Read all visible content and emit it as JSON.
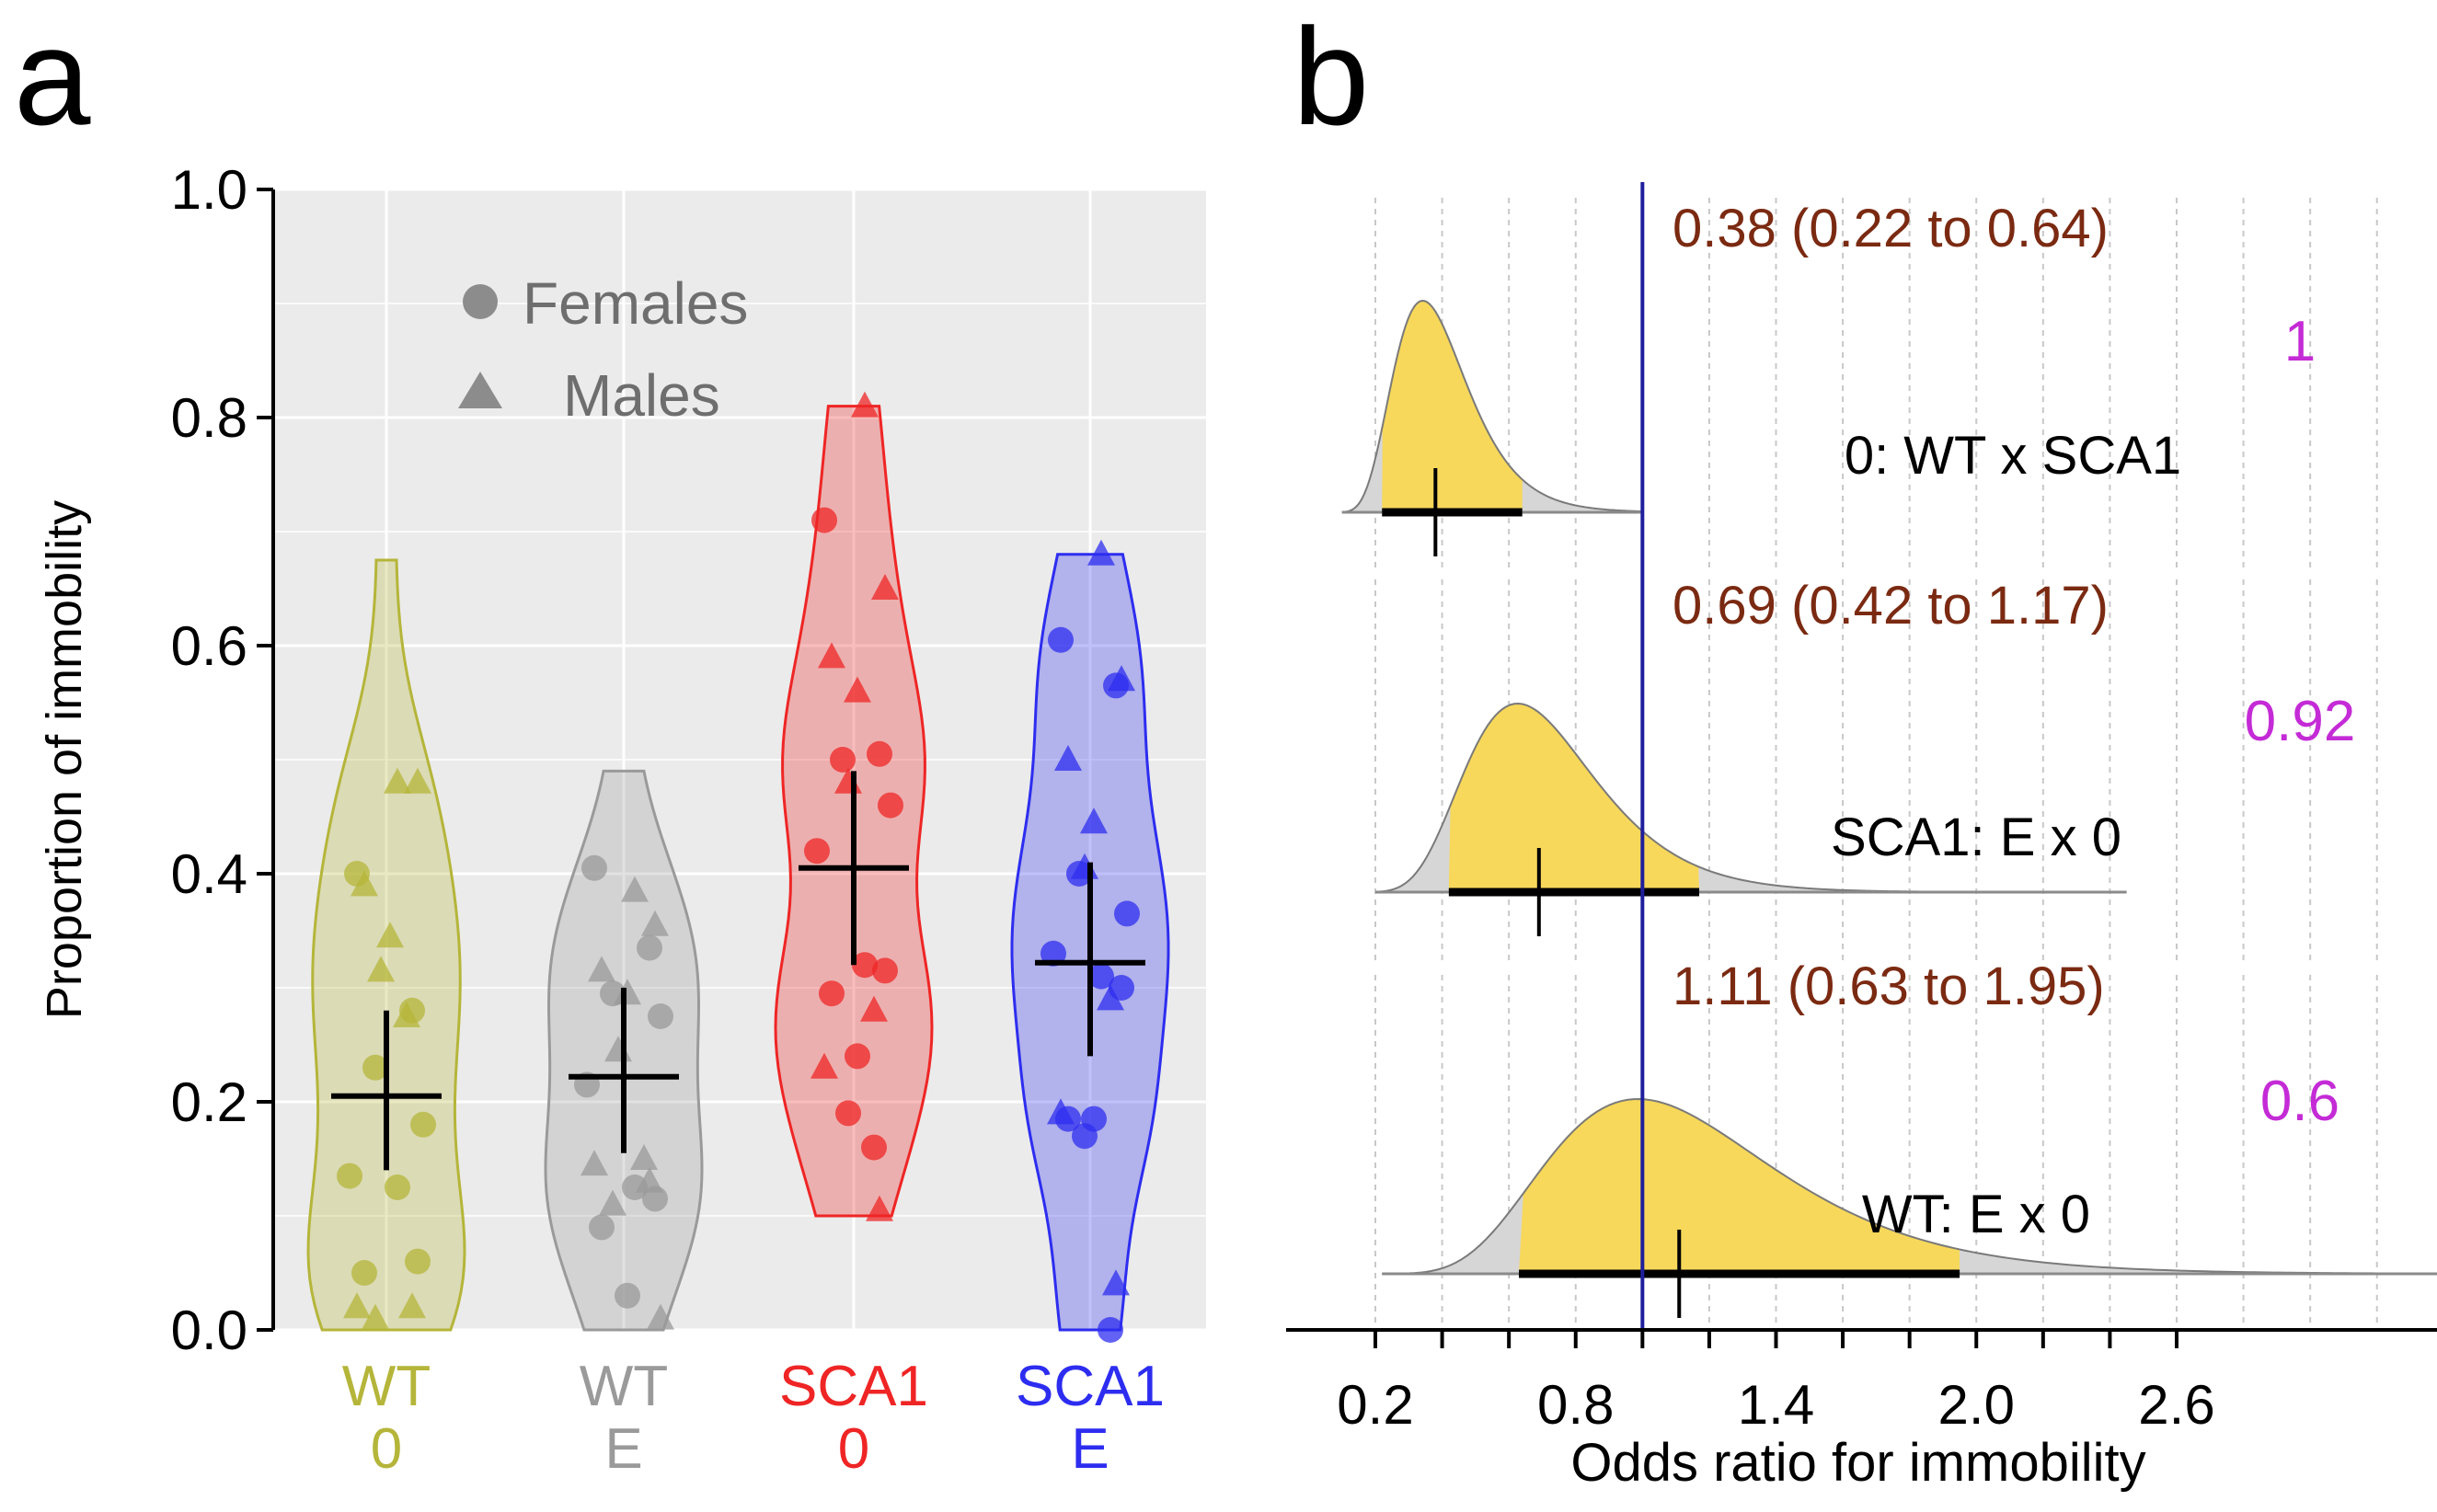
{
  "chart_data": [
    {
      "panel_label": "a",
      "type": "violin",
      "ylabel": "Proportion of immobility",
      "ylim": [
        0,
        1
      ],
      "yticks": [
        "0.0",
        "0.2",
        "0.4",
        "0.6",
        "0.8",
        "1.0"
      ],
      "grid": true,
      "legend": {
        "placement": "top-left",
        "entries": [
          {
            "label": "Females",
            "marker": "circle"
          },
          {
            "label": "Males",
            "marker": "triangle"
          }
        ]
      },
      "groups": [
        {
          "label_line1": "WT",
          "label_line2": "0",
          "color": "#b5b53a",
          "violin_min": 0.0,
          "violin_max": 0.675,
          "mean": 0.205,
          "ci": [
            0.14,
            0.28
          ],
          "females": [
            0.4,
            0.28,
            0.23,
            0.18,
            0.135,
            0.125,
            0.06,
            0.05
          ],
          "males": [
            0.48,
            0.48,
            0.39,
            0.345,
            0.315,
            0.275,
            0.02,
            0.02,
            0.01
          ]
        },
        {
          "label_line1": "WT",
          "label_line2": "E",
          "color": "#9a9a9a",
          "violin_min": 0.0,
          "violin_max": 0.49,
          "mean": 0.222,
          "ci": [
            0.155,
            0.3
          ],
          "females": [
            0.405,
            0.335,
            0.295,
            0.275,
            0.215,
            0.125,
            0.115,
            0.09,
            0.03
          ],
          "males": [
            0.385,
            0.355,
            0.315,
            0.295,
            0.245,
            0.15,
            0.145,
            0.13,
            0.11,
            0.01
          ]
        },
        {
          "label_line1": "SCA1",
          "label_line2": "0",
          "color": "#ef2525",
          "violin_min": 0.1,
          "violin_max": 0.81,
          "mean": 0.405,
          "ci": [
            0.32,
            0.49
          ],
          "females": [
            0.71,
            0.505,
            0.5,
            0.46,
            0.42,
            0.32,
            0.315,
            0.295,
            0.24,
            0.19,
            0.16
          ],
          "males": [
            0.81,
            0.65,
            0.59,
            0.56,
            0.48,
            0.28,
            0.23,
            0.105
          ]
        },
        {
          "label_line1": "SCA1",
          "label_line2": "E",
          "color": "#2d2df0",
          "violin_min": 0.0,
          "violin_max": 0.68,
          "mean": 0.322,
          "ci": [
            0.24,
            0.41
          ],
          "females": [
            0.605,
            0.565,
            0.4,
            0.365,
            0.33,
            0.31,
            0.3,
            0.185,
            0.185,
            0.17,
            0.0
          ],
          "males": [
            0.68,
            0.57,
            0.5,
            0.445,
            0.405,
            0.29,
            0.19,
            0.04
          ]
        }
      ]
    },
    {
      "panel_label": "b",
      "type": "density",
      "xlabel": "Odds ratio for immobility",
      "xticks": [
        0.2,
        0.8,
        1.4,
        2.0,
        2.6
      ],
      "tick_labels": [
        "0.2",
        "0.8",
        "1.4",
        "2.0",
        "2.6"
      ],
      "reference_line": 1.0,
      "contrasts": [
        {
          "label": "0: WT x SCA1",
          "estimate_text": "0.38 (0.22 to 0.64)",
          "probability": "1",
          "estimate": 0.38,
          "ci": [
            0.22,
            0.64
          ],
          "mode": 0.33,
          "tail_range": [
            0.1,
            1.0
          ]
        },
        {
          "label": "SCA1: E x 0",
          "estimate_text": "0.69 (0.42 to 1.17)",
          "probability": "0.92",
          "estimate": 0.69,
          "ci": [
            0.42,
            1.17
          ],
          "mode": 0.64,
          "tail_range": [
            0.2,
            2.45
          ]
        },
        {
          "label": "WT: E x 0",
          "estimate_text": "1.11 (0.63 to 1.95)",
          "probability": "0.6",
          "estimate": 1.11,
          "ci": [
            0.63,
            1.95
          ],
          "mode": 1.0,
          "tail_range": [
            0.22,
            3.9
          ]
        }
      ]
    }
  ]
}
